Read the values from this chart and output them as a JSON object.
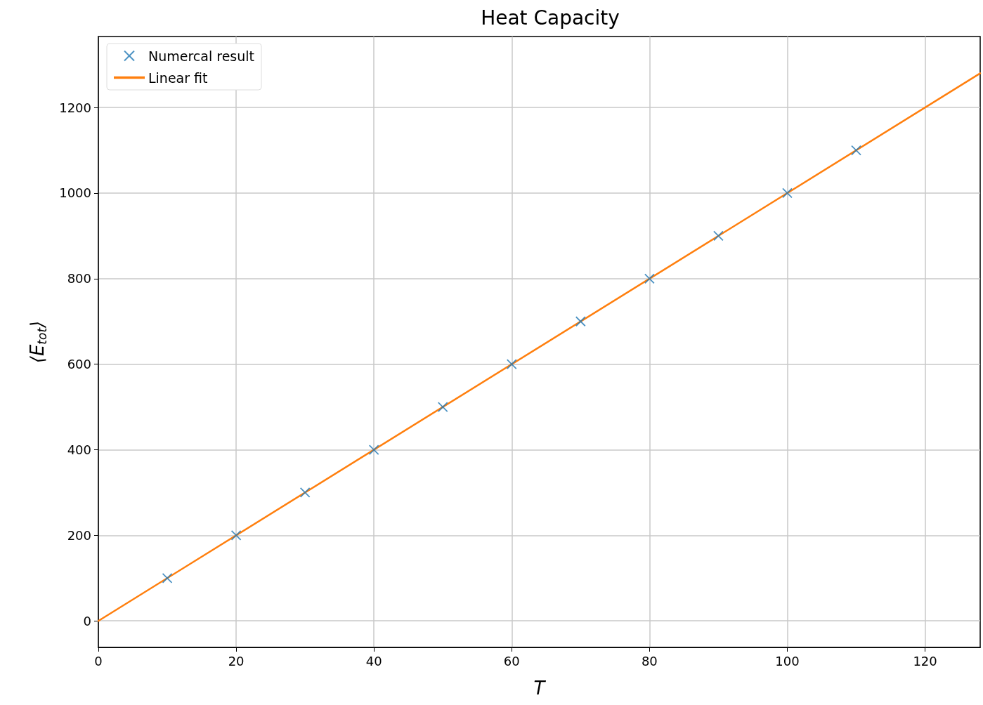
{
  "chart_data": {
    "type": "scatter",
    "title": "Heat Capacity",
    "xlabel": "T",
    "ylabel": "⟨E$_{tot}$⟩",
    "xlim": [
      0,
      128
    ],
    "xticks": [
      0,
      20,
      40,
      60,
      80,
      100,
      120
    ],
    "ylim": [
      -62,
      1366
    ],
    "yticks": [
      0,
      200,
      400,
      600,
      800,
      1000,
      1200
    ],
    "grid": true,
    "legend": "top left",
    "series": [
      {
        "name": "Numercal result",
        "marker": "cross",
        "color": "#1f77b4",
        "x": [
          10,
          20,
          30,
          40,
          50,
          60,
          70,
          80,
          90,
          100,
          110
        ],
        "values": [
          100,
          200,
          300,
          400,
          500,
          600,
          700,
          800,
          900,
          1000,
          1100
        ]
      },
      {
        "name": "Linear fit",
        "type": "line",
        "marker": "none",
        "line_style": "solid",
        "color": "#ff7f0e",
        "x": [
          0,
          128
        ],
        "values": [
          0,
          1280
        ]
      }
    ]
  }
}
